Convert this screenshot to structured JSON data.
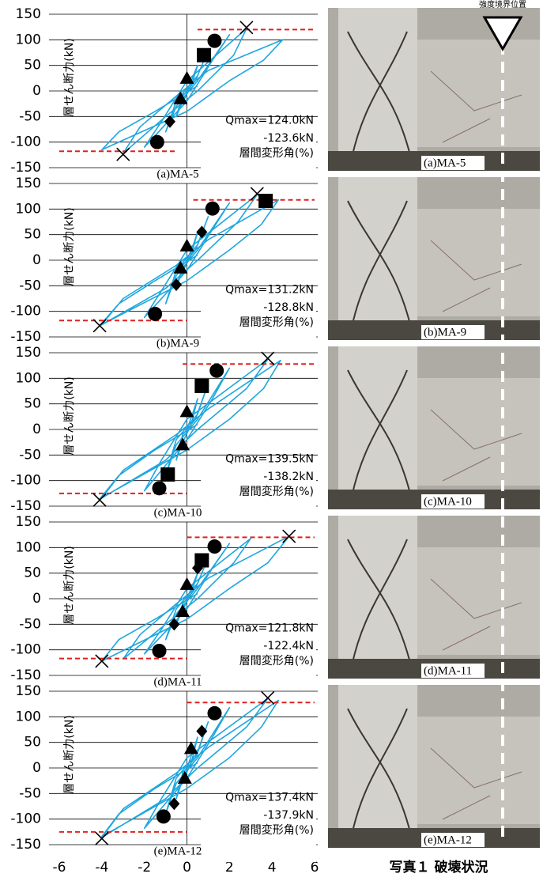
{
  "chart_data": [
    {
      "type": "line",
      "caption": "(a)MA-5",
      "ylabel": "層せん断力(kN)",
      "xlabel": "層間変形角(%)",
      "qmax_pos": "Qmax=124.0kN",
      "qmax_neg": "-123.6kN",
      "xlim": [
        -6,
        6
      ],
      "ylim": [
        -150,
        150
      ],
      "yticks": [
        -150,
        -100,
        -50,
        0,
        50,
        100,
        150
      ],
      "grid": true,
      "color": "#1fa6de",
      "x": [
        0,
        0.3,
        0.5,
        0.2,
        -0.3,
        -0.5,
        -0.2,
        0.4,
        1,
        0.5,
        -0.5,
        -1,
        -0.5,
        0.5,
        2,
        1.2,
        0,
        -2,
        -1.2,
        0,
        2.8,
        2.2,
        0.5,
        -1,
        -3,
        -2.2,
        -0.5,
        1,
        4.5,
        3.6,
        2,
        0,
        -4,
        -3.2,
        -1.5,
        0.5
      ],
      "y": [
        0,
        30,
        50,
        10,
        -30,
        -50,
        -10,
        20,
        80,
        30,
        -20,
        -80,
        -30,
        20,
        110,
        60,
        -20,
        -110,
        -60,
        20,
        122,
        70,
        0,
        -50,
        -122,
        -70,
        -10,
        40,
        100,
        60,
        20,
        -40,
        -115,
        -80,
        -40,
        10
      ],
      "ref_lines": [
        {
          "y": 120,
          "x": [
            0.5,
            6
          ]
        },
        {
          "y": -118,
          "x": [
            -6,
            -0.5
          ]
        }
      ],
      "ref_color": "#e02020",
      "markers": [
        {
          "shape": "circle",
          "x": [
            1.3,
            -1.4
          ],
          "y": [
            98,
            -100
          ]
        },
        {
          "shape": "square",
          "x": [
            0.8
          ],
          "y": [
            70
          ]
        },
        {
          "shape": "triangle",
          "x": [
            0,
            -0.3
          ],
          "y": [
            25,
            -15
          ]
        },
        {
          "shape": "diamond",
          "x": [
            -0.8
          ],
          "y": [
            -60
          ]
        },
        {
          "shape": "cross",
          "x": [
            2.8,
            -3
          ],
          "y": [
            124,
            -124
          ]
        }
      ]
    },
    {
      "type": "line",
      "caption": "(b)MA-9",
      "ylabel": "層せん断力(kN)",
      "xlabel": "層間変形角(%)",
      "qmax_pos": "Qmax=131.2kN",
      "qmax_neg": "-128.8kN",
      "xlim": [
        -6,
        6
      ],
      "ylim": [
        -150,
        150
      ],
      "yticks": [
        -150,
        -100,
        -50,
        0,
        50,
        100,
        150
      ],
      "grid": true,
      "color": "#1fa6de",
      "x": [
        0,
        0.3,
        0.5,
        0.2,
        -0.3,
        -0.5,
        -0.2,
        0.4,
        1,
        0.5,
        -0.5,
        -1,
        -0.5,
        0.5,
        2,
        1.2,
        0,
        -2,
        -1.2,
        0,
        3.3,
        2.4,
        0.5,
        -1,
        -4,
        -3,
        -0.5,
        1,
        4.3,
        3.5,
        2,
        0,
        -4.1,
        -3.2,
        -1.5,
        0.5
      ],
      "y": [
        0,
        30,
        55,
        10,
        -30,
        -55,
        -10,
        20,
        85,
        30,
        -20,
        -85,
        -30,
        20,
        112,
        60,
        -20,
        -112,
        -60,
        20,
        128,
        75,
        0,
        -55,
        -126,
        -75,
        -10,
        40,
        118,
        70,
        20,
        -40,
        -128,
        -85,
        -40,
        10
      ],
      "ref_lines": [
        {
          "y": 118,
          "x": [
            0.3,
            6
          ]
        },
        {
          "y": -118,
          "x": [
            -6,
            0
          ]
        }
      ],
      "ref_color": "#e02020",
      "markers": [
        {
          "shape": "circle",
          "x": [
            1.2,
            -1.5
          ],
          "y": [
            101,
            -105
          ]
        },
        {
          "shape": "square",
          "x": [
            3.7
          ],
          "y": [
            116
          ]
        },
        {
          "shape": "triangle",
          "x": [
            0,
            -0.3
          ],
          "y": [
            28,
            -15
          ]
        },
        {
          "shape": "diamond",
          "x": [
            0.7,
            -0.5
          ],
          "y": [
            55,
            -48
          ]
        },
        {
          "shape": "cross",
          "x": [
            3.3,
            -4.1
          ],
          "y": [
            130,
            -128
          ]
        }
      ]
    },
    {
      "type": "line",
      "caption": "(c)MA-10",
      "ylabel": "層せん断力(kN)",
      "xlabel": "層間変形角(%)",
      "qmax_pos": "Qmax=139.5kN",
      "qmax_neg": "-138.2kN",
      "xlim": [
        -6,
        6
      ],
      "ylim": [
        -150,
        150
      ],
      "yticks": [
        -150,
        -100,
        -50,
        0,
        50,
        100,
        150
      ],
      "grid": true,
      "color": "#1fa6de",
      "x": [
        0,
        0.3,
        0.5,
        0.2,
        -0.3,
        -0.5,
        -0.2,
        0.4,
        1,
        0.5,
        -0.5,
        -1,
        -0.5,
        0.5,
        2,
        1.2,
        0,
        -2,
        -1.2,
        0,
        3.8,
        2.8,
        0.5,
        -1,
        -4,
        -3,
        -0.5,
        1,
        4.4,
        3.6,
        2,
        0,
        -4.1,
        -3.2,
        -1.5,
        0.5
      ],
      "y": [
        0,
        35,
        60,
        10,
        -35,
        -60,
        -10,
        20,
        90,
        30,
        -20,
        -90,
        -30,
        20,
        120,
        60,
        -20,
        -120,
        -60,
        20,
        137,
        80,
        0,
        -60,
        -134,
        -80,
        -10,
        40,
        135,
        80,
        20,
        -40,
        -136,
        -90,
        -40,
        10
      ],
      "ref_lines": [
        {
          "y": 128,
          "x": [
            -0.2,
            6
          ]
        },
        {
          "y": -125,
          "x": [
            -6,
            0
          ]
        }
      ],
      "ref_color": "#e02020",
      "markers": [
        {
          "shape": "circle",
          "x": [
            1.4,
            -1.3
          ],
          "y": [
            115,
            -115
          ]
        },
        {
          "shape": "square",
          "x": [
            0.7,
            -0.9
          ],
          "y": [
            85,
            -88
          ]
        },
        {
          "shape": "triangle",
          "x": [
            0,
            -0.2
          ],
          "y": [
            35,
            -30
          ]
        },
        {
          "shape": "cross",
          "x": [
            3.8,
            -4.1
          ],
          "y": [
            139,
            -138
          ]
        }
      ]
    },
    {
      "type": "line",
      "caption": "(d)MA-11",
      "ylabel": "層せん断力(kN)",
      "xlabel": "層間変形角(%)",
      "qmax_pos": "Qmax=121.8kN",
      "qmax_neg": "-122.4kN",
      "xlim": [
        -6,
        6
      ],
      "ylim": [
        -150,
        150
      ],
      "yticks": [
        -150,
        -100,
        -50,
        0,
        50,
        100,
        150
      ],
      "grid": true,
      "color": "#1fa6de",
      "x": [
        0,
        0.3,
        0.5,
        0.2,
        -0.3,
        -0.5,
        -0.2,
        0.4,
        1,
        0.5,
        -0.5,
        -1,
        -0.5,
        0.5,
        2,
        1.2,
        0,
        -2,
        -1.2,
        0,
        3,
        2.2,
        0.5,
        -1,
        -3,
        -2.2,
        -0.5,
        1,
        4.8,
        3.8,
        2,
        0,
        -4,
        -3.2,
        -1.5,
        0.5
      ],
      "y": [
        0,
        30,
        50,
        10,
        -30,
        -50,
        -10,
        20,
        80,
        30,
        -20,
        -80,
        -30,
        20,
        108,
        60,
        -20,
        -108,
        -60,
        20,
        118,
        70,
        0,
        -50,
        -118,
        -70,
        -10,
        40,
        122,
        70,
        20,
        -40,
        -122,
        -80,
        -40,
        10
      ],
      "ref_lines": [
        {
          "y": 120,
          "x": [
            0,
            6
          ]
        },
        {
          "y": -117,
          "x": [
            -6,
            0
          ]
        }
      ],
      "ref_color": "#e02020",
      "markers": [
        {
          "shape": "circle",
          "x": [
            1.3,
            -1.3
          ],
          "y": [
            102,
            -102
          ]
        },
        {
          "shape": "square",
          "x": [
            0.7
          ],
          "y": [
            75
          ]
        },
        {
          "shape": "diamond",
          "x": [
            0.5,
            -0.6
          ],
          "y": [
            60,
            -50
          ]
        },
        {
          "shape": "triangle",
          "x": [
            0,
            -0.2
          ],
          "y": [
            28,
            -25
          ]
        },
        {
          "shape": "cross",
          "x": [
            4.8,
            -4
          ],
          "y": [
            122,
            -122
          ]
        }
      ]
    },
    {
      "type": "line",
      "caption": "(e)MA-12",
      "ylabel": "層せん断力(kN)",
      "xlabel": "層間変形角(%)",
      "qmax_pos": "Qmax=137.4kN",
      "qmax_neg": "-137.9kN",
      "xlim": [
        -6,
        6
      ],
      "ylim": [
        -150,
        150
      ],
      "yticks": [
        -150,
        -100,
        -50,
        0,
        50,
        100,
        150
      ],
      "xticks": [
        -6,
        -4,
        -2,
        0,
        2,
        4,
        6
      ],
      "grid": true,
      "color": "#1fa6de",
      "x": [
        0,
        0.3,
        0.5,
        0.2,
        -0.3,
        -0.5,
        -0.2,
        0.4,
        1,
        0.5,
        -0.5,
        -1,
        -0.5,
        0.5,
        2,
        1.2,
        0,
        -2,
        -1.2,
        0,
        3.8,
        2.8,
        0.5,
        -1,
        -4,
        -3,
        -0.5,
        1,
        4.3,
        3.5,
        2,
        0,
        -4,
        -3.2,
        -1.5,
        0.5
      ],
      "y": [
        0,
        35,
        60,
        10,
        -35,
        -60,
        -10,
        20,
        90,
        30,
        -20,
        -90,
        -30,
        20,
        118,
        60,
        -20,
        -118,
        -60,
        20,
        136,
        80,
        0,
        -60,
        -136,
        -80,
        -10,
        40,
        132,
        80,
        20,
        -40,
        -134,
        -90,
        -40,
        10
      ],
      "ref_lines": [
        {
          "y": 128,
          "x": [
            0,
            6
          ]
        },
        {
          "y": -125,
          "x": [
            -6,
            0
          ]
        }
      ],
      "ref_color": "#e02020",
      "markers": [
        {
          "shape": "circle",
          "x": [
            1.3,
            -1.1
          ],
          "y": [
            107,
            -95
          ]
        },
        {
          "shape": "diamond",
          "x": [
            0.7,
            -0.6
          ],
          "y": [
            72,
            -70
          ]
        },
        {
          "shape": "triangle",
          "x": [
            0.2,
            -0.1
          ],
          "y": [
            38,
            -20
          ]
        },
        {
          "shape": "cross",
          "x": [
            3.8,
            -4
          ],
          "y": [
            137,
            -138
          ]
        }
      ]
    }
  ],
  "photos": {
    "header": "強度境界位置",
    "captions": [
      "(a)MA-5",
      "(b)MA-9",
      "(c)MA-10",
      "(d)MA-11",
      "(e)MA-12"
    ],
    "title": "写真１ 破壊状況"
  }
}
